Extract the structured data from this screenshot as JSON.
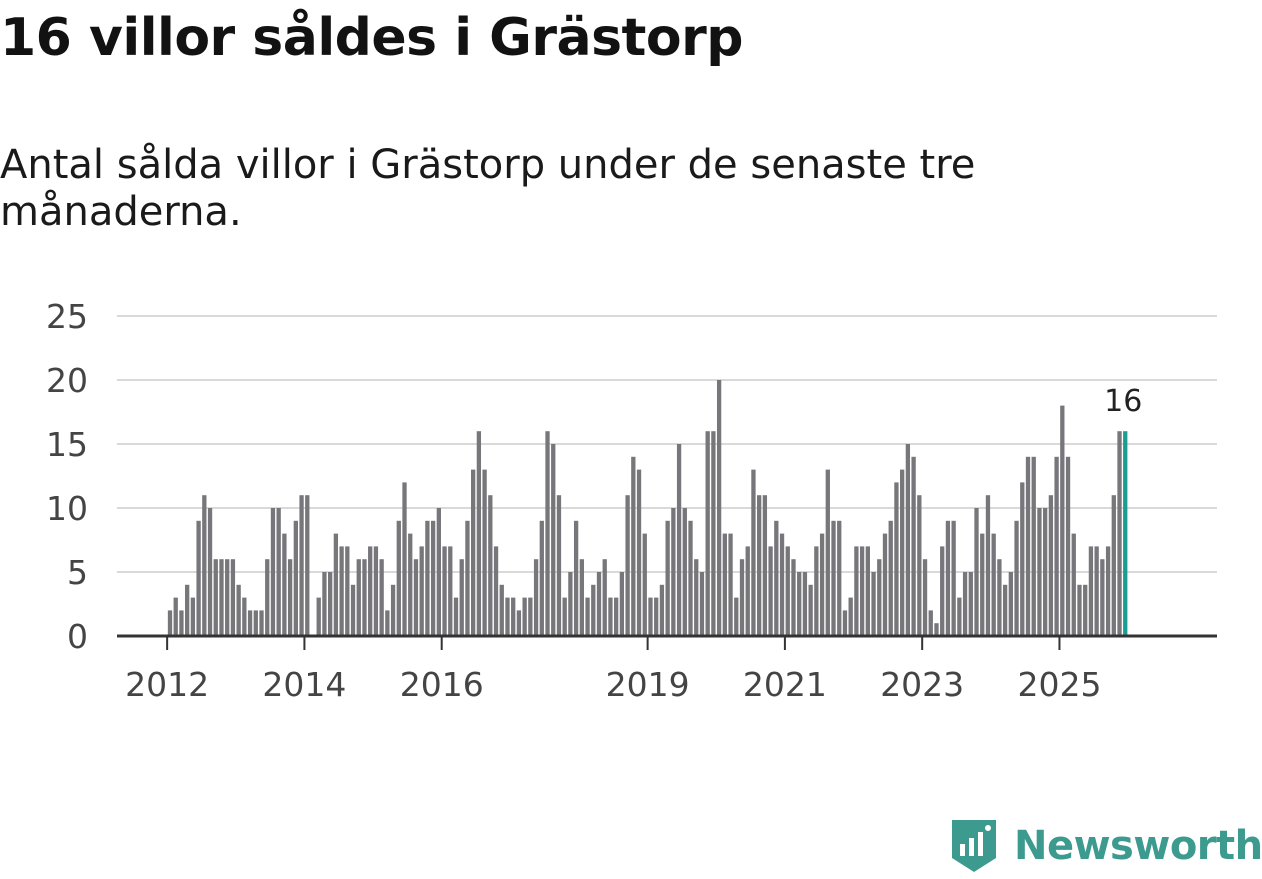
{
  "title": "16 villor såldes i Grästorp",
  "subtitle": "Antal sålda villor i Grästorp under de senaste tre månaderna.",
  "brand": "Newsworthy",
  "colors": {
    "bar": "#77767b",
    "highlight": "#1a9e92",
    "grid": "#d9d9d9",
    "axis": "#333333",
    "brand": "#3d9a8f"
  },
  "chart_data": {
    "type": "bar",
    "title": "16 villor såldes i Grästorp",
    "xlabel": "",
    "ylabel": "",
    "ylim": [
      0,
      25
    ],
    "yticks": [
      0,
      5,
      10,
      15,
      20,
      25
    ],
    "grid": true,
    "start": "2012-01",
    "xtick_labels": [
      {
        "label": "2012",
        "index": 0
      },
      {
        "label": "2014",
        "index": 24
      },
      {
        "label": "2016",
        "index": 48
      },
      {
        "label": "2019",
        "index": 84
      },
      {
        "label": "2021",
        "index": 108
      },
      {
        "label": "2023",
        "index": 132
      },
      {
        "label": "2025",
        "index": 156
      }
    ],
    "values": [
      2,
      3,
      2,
      4,
      3,
      9,
      11,
      10,
      6,
      6,
      6,
      6,
      4,
      3,
      2,
      2,
      2,
      6,
      10,
      10,
      8,
      6,
      9,
      11,
      11,
      0,
      3,
      5,
      5,
      8,
      7,
      7,
      4,
      6,
      6,
      7,
      7,
      6,
      2,
      4,
      9,
      12,
      8,
      6,
      7,
      9,
      9,
      10,
      7,
      7,
      3,
      6,
      9,
      13,
      16,
      13,
      11,
      7,
      4,
      3,
      3,
      2,
      3,
      3,
      6,
      9,
      16,
      15,
      11,
      3,
      5,
      9,
      6,
      3,
      4,
      5,
      6,
      3,
      3,
      5,
      11,
      14,
      13,
      8,
      3,
      3,
      4,
      9,
      10,
      15,
      10,
      9,
      6,
      5,
      16,
      16,
      20,
      8,
      8,
      3,
      6,
      7,
      13,
      11,
      11,
      7,
      9,
      8,
      7,
      6,
      5,
      5,
      4,
      7,
      8,
      13,
      9,
      9,
      2,
      3,
      7,
      7,
      7,
      5,
      6,
      8,
      9,
      12,
      13,
      15,
      14,
      11,
      6,
      2,
      1,
      7,
      9,
      9,
      3,
      5,
      5,
      10,
      8,
      11,
      8,
      6,
      4,
      5,
      9,
      12,
      14,
      14,
      10,
      10,
      11,
      14,
      18,
      14,
      8,
      4,
      4,
      7,
      7,
      6,
      7,
      11,
      16,
      16
    ],
    "highlight_index": 167,
    "annotation": {
      "index": 167,
      "label": "16"
    }
  }
}
